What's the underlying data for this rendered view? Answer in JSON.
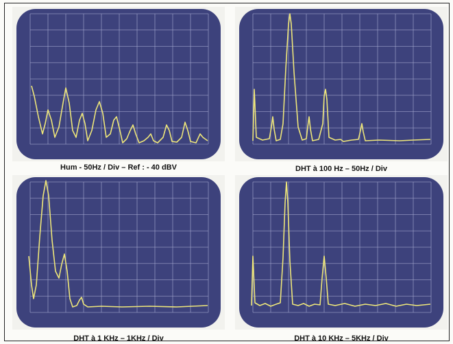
{
  "panels": [
    {
      "caption": "Hum - 50Hz / Div – Ref : - 40 dBV"
    },
    {
      "caption": "DHT à 100 Hz – 50Hz / Div"
    },
    {
      "caption": "DHT à 1 KHz – 1KHz / Div"
    },
    {
      "caption": "DHT à 10 KHz – 5KHz / Div"
    }
  ]
}
